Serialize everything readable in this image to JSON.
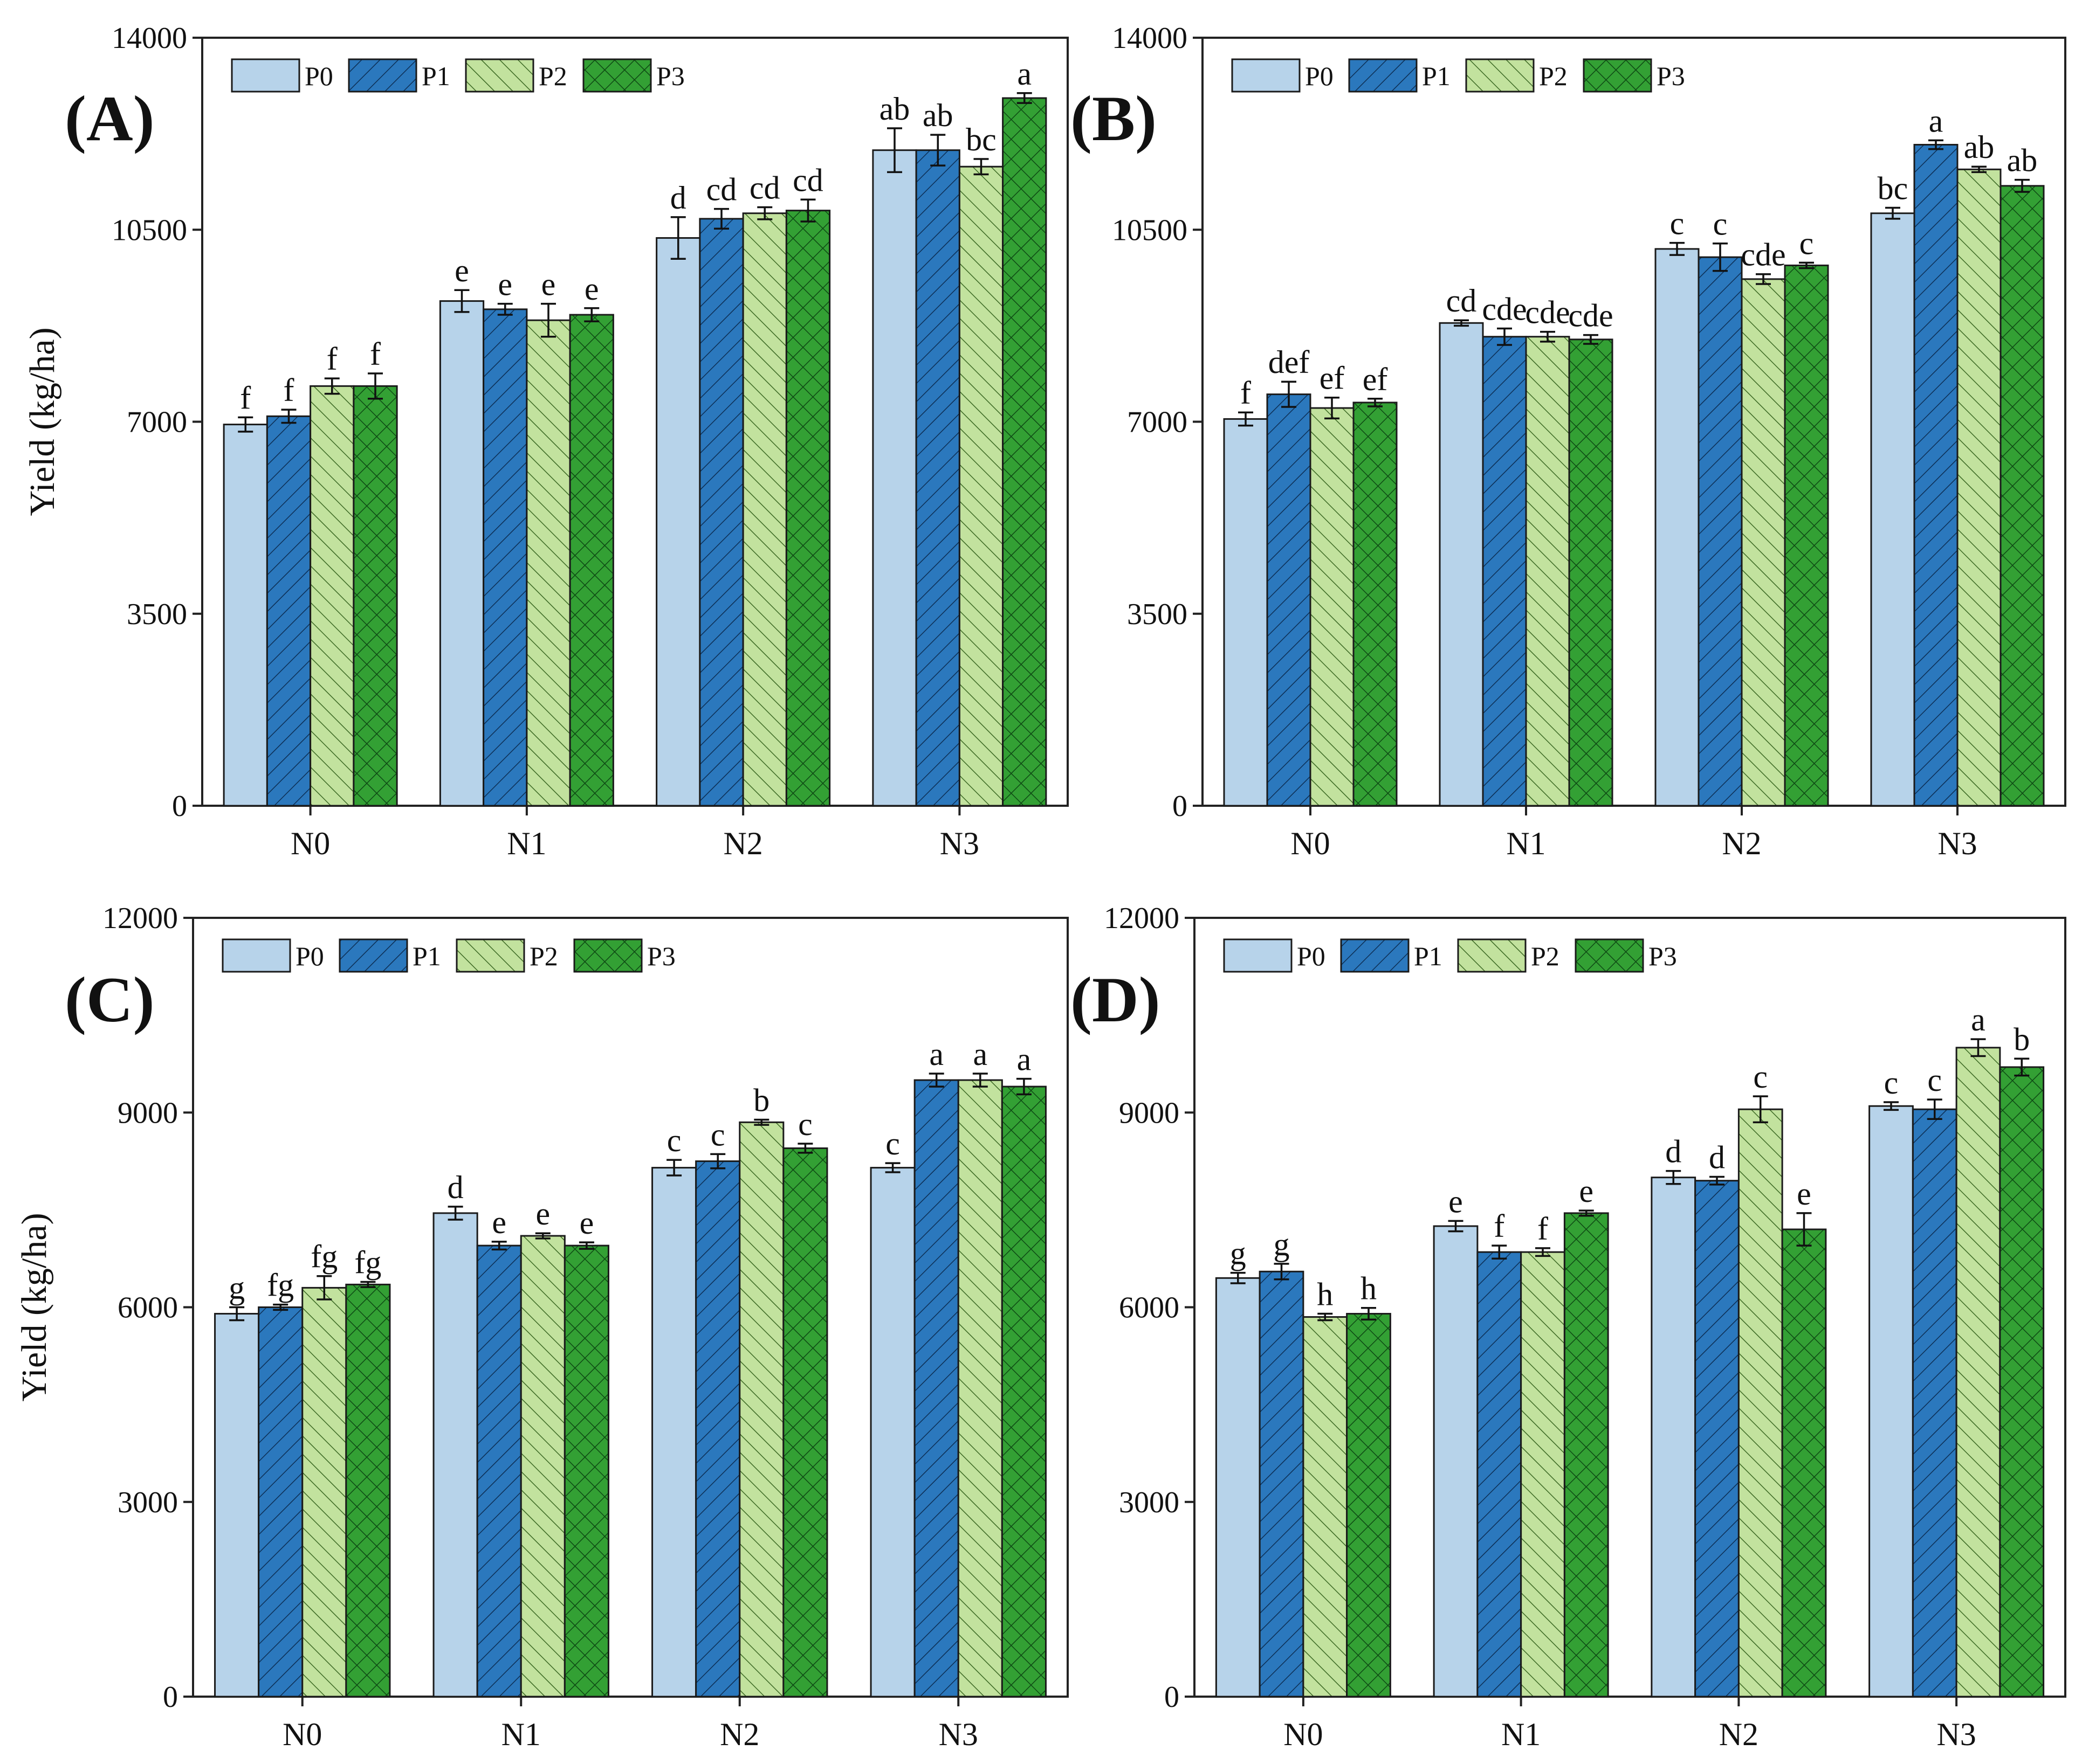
{
  "figure": {
    "series_names": [
      "P0",
      "P1",
      "P2",
      "P3"
    ],
    "colors": {
      "P0": "#b7d3ea",
      "P1": "#2b78bd",
      "P2": "#c2e29e",
      "P3": "#33a034"
    },
    "patterns": {
      "P0": "none",
      "P1": "forward-diagonal-hatch",
      "P2": "backward-diagonal-hatch",
      "P3": "cross-hatch"
    }
  },
  "chart_data": [
    {
      "panel": "(A)",
      "type": "bar",
      "title": "",
      "categories": [
        "N0",
        "N1",
        "N2",
        "N3"
      ],
      "ylabel": "Yield (kg/ha)",
      "ylim": [
        0,
        14000
      ],
      "yticks": [
        "0",
        "3500",
        "7000",
        "10500",
        "14000"
      ],
      "legend": "top-left",
      "series": [
        {
          "name": "P0",
          "values": [
            6950,
            9200,
            10350,
            11950
          ],
          "errors": [
            130,
            200,
            380,
            400
          ],
          "letters": [
            "f",
            "e",
            "d",
            "ab"
          ]
        },
        {
          "name": "P1",
          "values": [
            7100,
            9050,
            10700,
            11950
          ],
          "errors": [
            120,
            100,
            180,
            280
          ],
          "letters": [
            "f",
            "e",
            "cd",
            "ab"
          ]
        },
        {
          "name": "P2",
          "values": [
            7650,
            8850,
            10800,
            11650
          ],
          "errors": [
            140,
            300,
            110,
            140
          ],
          "letters": [
            "f",
            "e",
            "cd",
            "bc"
          ]
        },
        {
          "name": "P3",
          "values": [
            7650,
            8950,
            10850,
            12900
          ],
          "errors": [
            230,
            120,
            200,
            90
          ],
          "letters": [
            "f",
            "e",
            "cd",
            "a"
          ]
        }
      ]
    },
    {
      "panel": "(B)",
      "type": "bar",
      "title": "",
      "categories": [
        "N0",
        "N1",
        "N2",
        "N3"
      ],
      "ylabel": "",
      "ylim": [
        0,
        14000
      ],
      "yticks": [
        "0",
        "3500",
        "7000",
        "10500",
        "14000"
      ],
      "legend": "top-left",
      "series": [
        {
          "name": "P0",
          "values": [
            7050,
            8800,
            10150,
            10800
          ],
          "errors": [
            120,
            50,
            110,
            100
          ],
          "letters": [
            "f",
            "cd",
            "c",
            "bc"
          ]
        },
        {
          "name": "P1",
          "values": [
            7500,
            8550,
            10000,
            12050
          ],
          "errors": [
            230,
            150,
            250,
            80
          ],
          "letters": [
            "def",
            "cde",
            "c",
            "a"
          ]
        },
        {
          "name": "P2",
          "values": [
            7250,
            8550,
            9600,
            11600
          ],
          "errors": [
            190,
            90,
            90,
            50
          ],
          "letters": [
            "ef",
            "cde",
            "cde",
            "ab"
          ]
        },
        {
          "name": "P3",
          "values": [
            7350,
            8500,
            9850,
            11300
          ],
          "errors": [
            70,
            80,
            50,
            110
          ],
          "letters": [
            "ef",
            "cde",
            "c",
            "ab"
          ]
        }
      ]
    },
    {
      "panel": "(C)",
      "type": "bar",
      "title": "",
      "categories": [
        "N0",
        "N1",
        "N2",
        "N3"
      ],
      "ylabel": "Yield (kg/ha)",
      "ylim": [
        0,
        12000
      ],
      "yticks": [
        "0",
        "3000",
        "6000",
        "9000",
        "12000"
      ],
      "legend": "top-left",
      "series": [
        {
          "name": "P0",
          "values": [
            5900,
            7450,
            8150,
            8150
          ],
          "errors": [
            100,
            100,
            120,
            70
          ],
          "letters": [
            "g",
            "d",
            "c",
            "c"
          ]
        },
        {
          "name": "P1",
          "values": [
            6000,
            6950,
            8250,
            9500
          ],
          "errors": [
            40,
            60,
            110,
            100
          ],
          "letters": [
            "fg",
            "e",
            "c",
            "a"
          ]
        },
        {
          "name": "P2",
          "values": [
            6300,
            7100,
            8850,
            9500
          ],
          "errors": [
            180,
            40,
            40,
            100
          ],
          "letters": [
            "fg",
            "e",
            "b",
            "a"
          ]
        },
        {
          "name": "P3",
          "values": [
            6350,
            6950,
            8450,
            9400
          ],
          "errors": [
            40,
            50,
            70,
            120
          ],
          "letters": [
            "fg",
            "e",
            "c",
            "a"
          ]
        }
      ]
    },
    {
      "panel": "(D)",
      "type": "bar",
      "title": "",
      "categories": [
        "N0",
        "N1",
        "N2",
        "N3"
      ],
      "ylabel": "",
      "ylim": [
        0,
        12000
      ],
      "yticks": [
        "0",
        "3000",
        "6000",
        "9000",
        "12000"
      ],
      "legend": "top-left",
      "series": [
        {
          "name": "P0",
          "values": [
            6450,
            7250,
            8000,
            9100
          ],
          "errors": [
            80,
            80,
            100,
            60
          ],
          "letters": [
            "g",
            "e",
            "d",
            "c"
          ]
        },
        {
          "name": "P1",
          "values": [
            6550,
            6850,
            7950,
            9050
          ],
          "errors": [
            120,
            100,
            60,
            150
          ],
          "letters": [
            "g",
            "f",
            "d",
            "c"
          ]
        },
        {
          "name": "P2",
          "values": [
            5850,
            6850,
            9050,
            10000
          ],
          "errors": [
            50,
            60,
            200,
            130
          ],
          "letters": [
            "h",
            "f",
            "c",
            "a"
          ]
        },
        {
          "name": "P3",
          "values": [
            5900,
            7450,
            7200,
            9700
          ],
          "errors": [
            90,
            40,
            250,
            130
          ],
          "letters": [
            "h",
            "e",
            "e",
            "b"
          ]
        }
      ]
    }
  ]
}
